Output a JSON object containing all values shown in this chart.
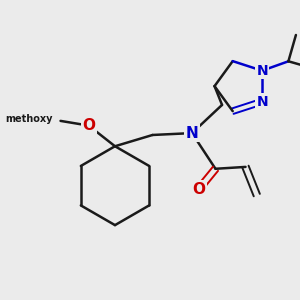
{
  "background_color": "#ebebeb",
  "bond_color": "#1a1a1a",
  "nitrogen_color": "#0000cc",
  "oxygen_color": "#cc0000",
  "figsize": [
    3.0,
    3.0
  ],
  "dpi": 100,
  "xlim": [
    0,
    300
  ],
  "ylim": [
    0,
    300
  ]
}
